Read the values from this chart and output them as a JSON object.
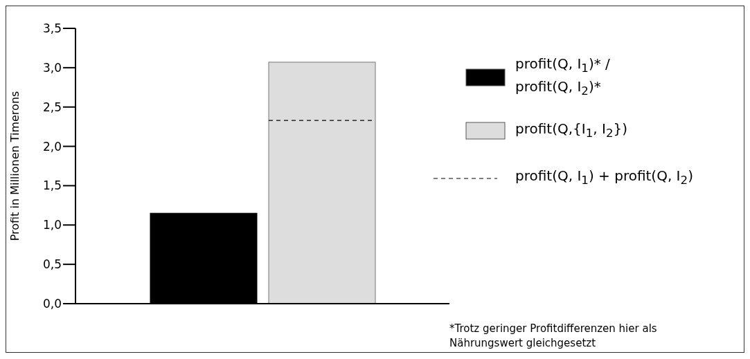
{
  "chart_data": {
    "type": "bar",
    "ylabel": "Profit in Millionen Timerons",
    "categories": [
      null
    ],
    "series": [
      {
        "name": "profit(Q, I$_{1}$)* / profit(Q, I$_{2}$)*",
        "color": "#000000",
        "values": [
          1.15
        ]
      },
      {
        "name": "profit(Q,{I$_{1}$, I$_{2}$})",
        "color": "#dddddd",
        "values": [
          3.07
        ]
      }
    ],
    "ref_lines": [
      {
        "axis": "y",
        "value": 2.33,
        "label": "profit(Q, I$_{1}$) + profit(Q, I$_{2}$)",
        "line_style": "dashed",
        "color": "#000000"
      }
    ],
    "ylim": [
      0,
      3.5
    ],
    "yticks": [
      {
        "value": 0,
        "label": "0,0"
      },
      {
        "value": 0.5,
        "label": "0,5"
      },
      {
        "value": 1,
        "label": "1,0"
      },
      {
        "value": 1.5,
        "label": "1,5"
      },
      {
        "value": 2,
        "label": "2,0"
      },
      {
        "value": 2.5,
        "label": "2,5"
      },
      {
        "value": 3,
        "label": "3,0"
      },
      {
        "value": 3.5,
        "label": "3,5"
      }
    ],
    "grid": false,
    "legend": "right",
    "annotations": [
      "*Trotz geringer Profitdifferenzen hier als Nährungswert gleichgesetzt"
    ]
  }
}
